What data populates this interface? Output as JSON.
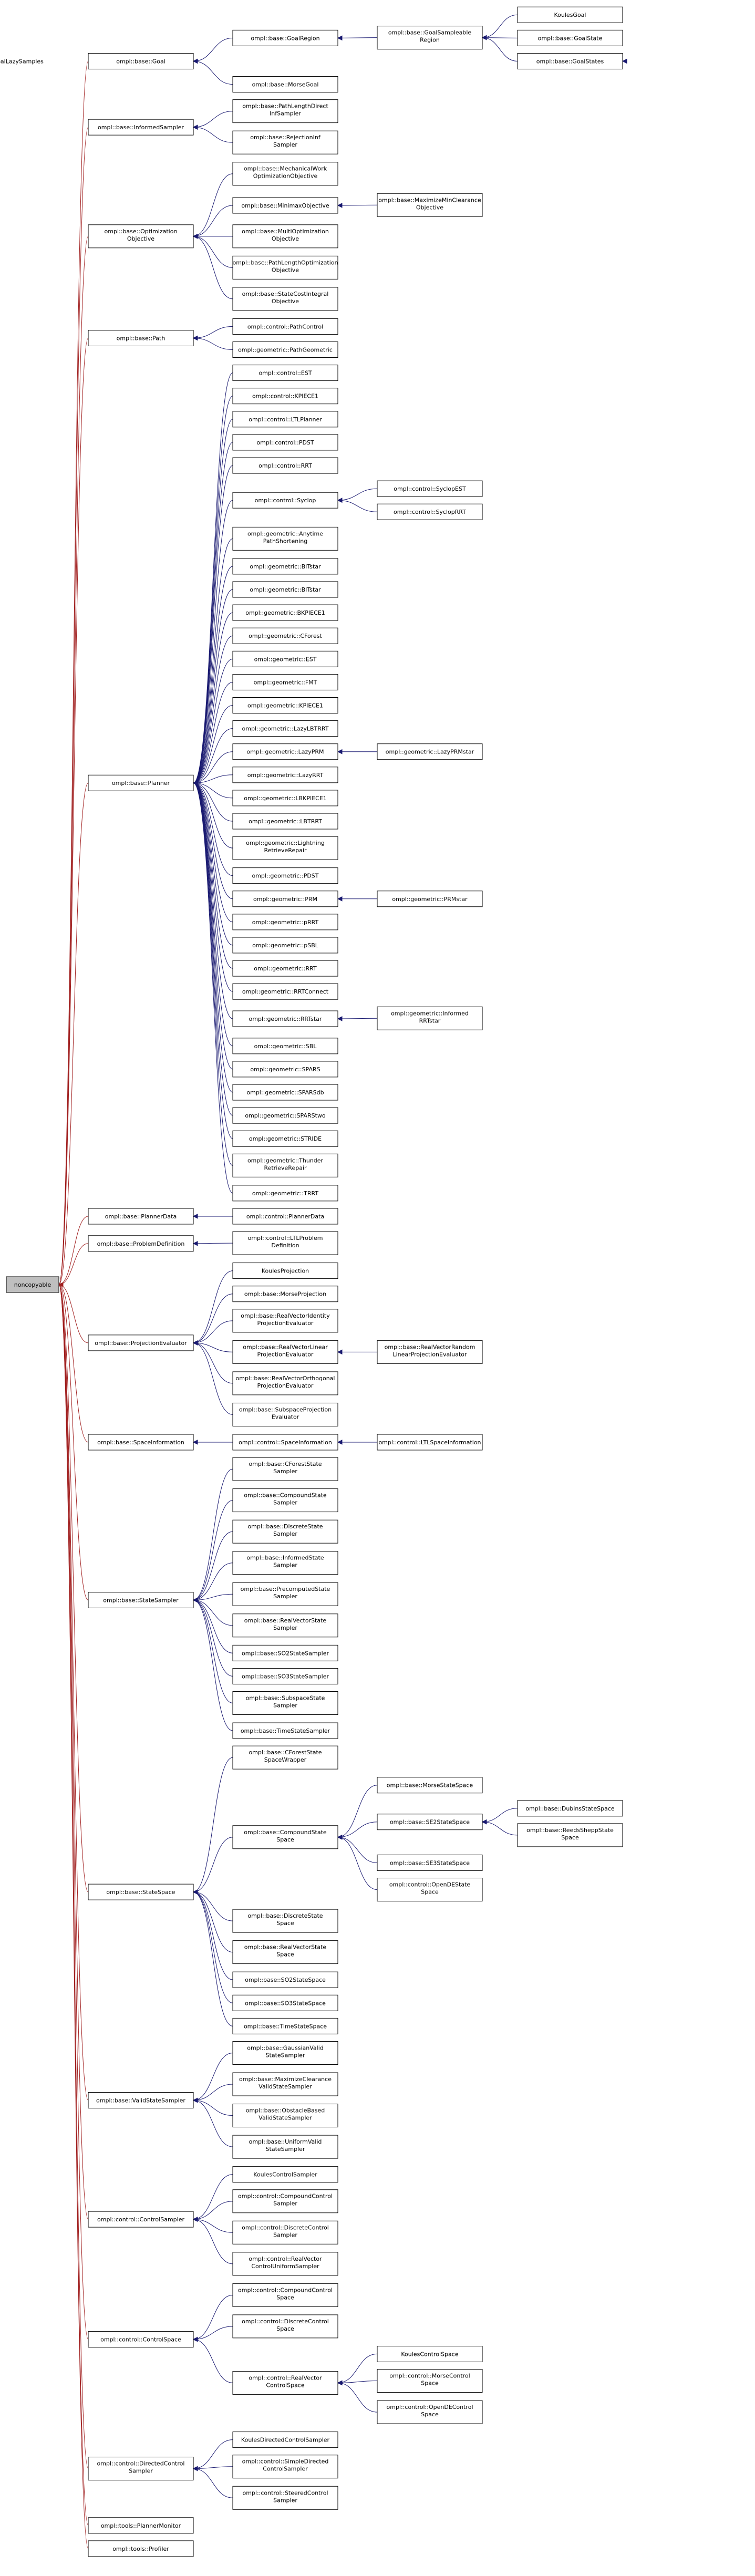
{
  "diagram": {
    "root": "noncopyable",
    "edge_colors": {
      "root_edges": "#a01e1e",
      "class_edges": "#191970"
    },
    "root_fill": "#bfbfbf",
    "groups": [
      {
        "label": "ompl::base::Goal",
        "children": [
          {
            "label": "ompl::base::GoalRegion",
            "children": [
              {
                "label": "ompl::base::GoalSampleable Region",
                "children": [
                  {
                    "label": "KoulesGoal"
                  },
                  {
                    "label": "ompl::base::GoalState"
                  },
                  {
                    "label": "ompl::base::GoalStates",
                    "children": [
                      {
                        "label": "ompl::base::GoalLazySamples"
                      }
                    ]
                  }
                ]
              }
            ]
          },
          {
            "label": "ompl::base::MorseGoal"
          }
        ]
      },
      {
        "label": "ompl::base::InformedSampler",
        "children": [
          {
            "label": "ompl::base::PathLengthDirect InfSampler"
          },
          {
            "label": "ompl::base::RejectionInf Sampler"
          }
        ]
      },
      {
        "label": "ompl::base::Optimization Objective",
        "children": [
          {
            "label": "ompl::base::MechanicalWork OptimizationObjective"
          },
          {
            "label": "ompl::base::MinimaxObjective",
            "children": [
              {
                "label": "ompl::base::MaximizeMinClearance Objective"
              }
            ]
          },
          {
            "label": "ompl::base::MultiOptimization Objective"
          },
          {
            "label": "ompl::base::PathLengthOptimization Objective"
          },
          {
            "label": "ompl::base::StateCostIntegral Objective"
          }
        ]
      },
      {
        "label": "ompl::base::Path",
        "children": [
          {
            "label": "ompl::control::PathControl"
          },
          {
            "label": "ompl::geometric::PathGeometric"
          }
        ]
      },
      {
        "label": "ompl::base::Planner",
        "children": [
          {
            "label": "ompl::control::EST"
          },
          {
            "label": "ompl::control::KPIECE1"
          },
          {
            "label": "ompl::control::LTLPlanner"
          },
          {
            "label": "ompl::control::PDST"
          },
          {
            "label": "ompl::control::RRT"
          },
          {
            "label": "ompl::control::Syclop",
            "children": [
              {
                "label": "ompl::control::SyclopEST"
              },
              {
                "label": "ompl::control::SyclopRRT"
              }
            ]
          },
          {
            "label": "ompl::geometric::Anytime PathShortening"
          },
          {
            "label": "ompl::geometric::BITstar"
          },
          {
            "label": "ompl::geometric::BITstar"
          },
          {
            "label": "ompl::geometric::BKPIECE1"
          },
          {
            "label": "ompl::geometric::CForest"
          },
          {
            "label": "ompl::geometric::EST"
          },
          {
            "label": "ompl::geometric::FMT"
          },
          {
            "label": "ompl::geometric::KPIECE1"
          },
          {
            "label": "ompl::geometric::LazyLBTRRT"
          },
          {
            "label": "ompl::geometric::LazyPRM",
            "children": [
              {
                "label": "ompl::geometric::LazyPRMstar"
              }
            ]
          },
          {
            "label": "ompl::geometric::LazyRRT"
          },
          {
            "label": "ompl::geometric::LBKPIECE1"
          },
          {
            "label": "ompl::geometric::LBTRRT"
          },
          {
            "label": "ompl::geometric::Lightning RetrieveRepair"
          },
          {
            "label": "ompl::geometric::PDST"
          },
          {
            "label": "ompl::geometric::PRM",
            "children": [
              {
                "label": "ompl::geometric::PRMstar"
              }
            ]
          },
          {
            "label": "ompl::geometric::pRRT"
          },
          {
            "label": "ompl::geometric::pSBL"
          },
          {
            "label": "ompl::geometric::RRT"
          },
          {
            "label": "ompl::geometric::RRTConnect"
          },
          {
            "label": "ompl::geometric::RRTstar",
            "children": [
              {
                "label": "ompl::geometric::Informed RRTstar"
              }
            ]
          },
          {
            "label": "ompl::geometric::SBL"
          },
          {
            "label": "ompl::geometric::SPARS"
          },
          {
            "label": "ompl::geometric::SPARSdb"
          },
          {
            "label": "ompl::geometric::SPARStwo"
          },
          {
            "label": "ompl::geometric::STRIDE"
          },
          {
            "label": "ompl::geometric::Thunder RetrieveRepair"
          },
          {
            "label": "ompl::geometric::TRRT"
          }
        ]
      },
      {
        "label": "ompl::base::PlannerData",
        "children": [
          {
            "label": "ompl::control::PlannerData"
          }
        ]
      },
      {
        "label": "ompl::base::ProblemDefinition",
        "children": [
          {
            "label": "ompl::control::LTLProblem Definition"
          }
        ]
      },
      {
        "label": "ompl::base::ProjectionEvaluator",
        "children": [
          {
            "label": "KoulesProjection"
          },
          {
            "label": "ompl::base::MorseProjection"
          },
          {
            "label": "ompl::base::RealVectorIdentity ProjectionEvaluator"
          },
          {
            "label": "ompl::base::RealVectorLinear ProjectionEvaluator",
            "children": [
              {
                "label": "ompl::base::RealVectorRandom LinearProjectionEvaluator"
              }
            ]
          },
          {
            "label": "ompl::base::RealVectorOrthogonal ProjectionEvaluator"
          },
          {
            "label": "ompl::base::SubspaceProjection Evaluator"
          }
        ]
      },
      {
        "label": "ompl::base::SpaceInformation",
        "children": [
          {
            "label": "ompl::control::SpaceInformation",
            "children": [
              {
                "label": "ompl::control::LTLSpaceInformation"
              }
            ]
          }
        ]
      },
      {
        "label": "ompl::base::StateSampler",
        "children": [
          {
            "label": "ompl::base::CForestState Sampler"
          },
          {
            "label": "ompl::base::CompoundState Sampler"
          },
          {
            "label": "ompl::base::DiscreteState Sampler"
          },
          {
            "label": "ompl::base::InformedState Sampler"
          },
          {
            "label": "ompl::base::PrecomputedState Sampler"
          },
          {
            "label": "ompl::base::RealVectorState Sampler"
          },
          {
            "label": "ompl::base::SO2StateSampler"
          },
          {
            "label": "ompl::base::SO3StateSampler"
          },
          {
            "label": "ompl::base::SubspaceState Sampler"
          },
          {
            "label": "ompl::base::TimeStateSampler"
          }
        ]
      },
      {
        "label": "ompl::base::StateSpace",
        "children": [
          {
            "label": "ompl::base::CForestState SpaceWrapper"
          },
          {
            "label": "ompl::base::CompoundState Space",
            "children": [
              {
                "label": "ompl::base::MorseStateSpace"
              },
              {
                "label": "ompl::base::SE2StateSpace",
                "children": [
                  {
                    "label": "ompl::base::DubinsStateSpace"
                  },
                  {
                    "label": "ompl::base::ReedsSheppState Space"
                  }
                ]
              },
              {
                "label": "ompl::base::SE3StateSpace"
              },
              {
                "label": "ompl::control::OpenDEState Space"
              }
            ]
          },
          {
            "label": "ompl::base::DiscreteState Space"
          },
          {
            "label": "ompl::base::RealVectorState Space"
          },
          {
            "label": "ompl::base::SO2StateSpace"
          },
          {
            "label": "ompl::base::SO3StateSpace"
          },
          {
            "label": "ompl::base::TimeStateSpace"
          }
        ]
      },
      {
        "label": "ompl::base::ValidStateSampler",
        "children": [
          {
            "label": "ompl::base::GaussianValid StateSampler"
          },
          {
            "label": "ompl::base::MaximizeClearance ValidStateSampler"
          },
          {
            "label": "ompl::base::ObstacleBased ValidStateSampler"
          },
          {
            "label": "ompl::base::UniformValid StateSampler"
          }
        ]
      },
      {
        "label": "ompl::control::ControlSampler",
        "children": [
          {
            "label": "KoulesControlSampler"
          },
          {
            "label": "ompl::control::CompoundControl Sampler"
          },
          {
            "label": "ompl::control::DiscreteControl Sampler"
          },
          {
            "label": "ompl::control::RealVector ControlUniformSampler"
          }
        ]
      },
      {
        "label": "ompl::control::ControlSpace",
        "children": [
          {
            "label": "ompl::control::CompoundControl Space"
          },
          {
            "label": "ompl::control::DiscreteControl Space"
          },
          {
            "label": "ompl::control::RealVector ControlSpace",
            "children": [
              {
                "label": "KoulesControlSpace"
              },
              {
                "label": "ompl::control::MorseControl Space"
              },
              {
                "label": "ompl::control::OpenDEControl Space"
              }
            ]
          }
        ]
      },
      {
        "label": "ompl::control::DirectedControl Sampler",
        "children": [
          {
            "label": "KoulesDirectedControlSampler"
          },
          {
            "label": "ompl::control::SimpleDirected ControlSampler"
          },
          {
            "label": "ompl::control::SteeredControl Sampler"
          }
        ]
      },
      {
        "label": "ompl::tools::PlannerMonitor"
      },
      {
        "label": "ompl::tools::Profiler"
      }
    ]
  }
}
